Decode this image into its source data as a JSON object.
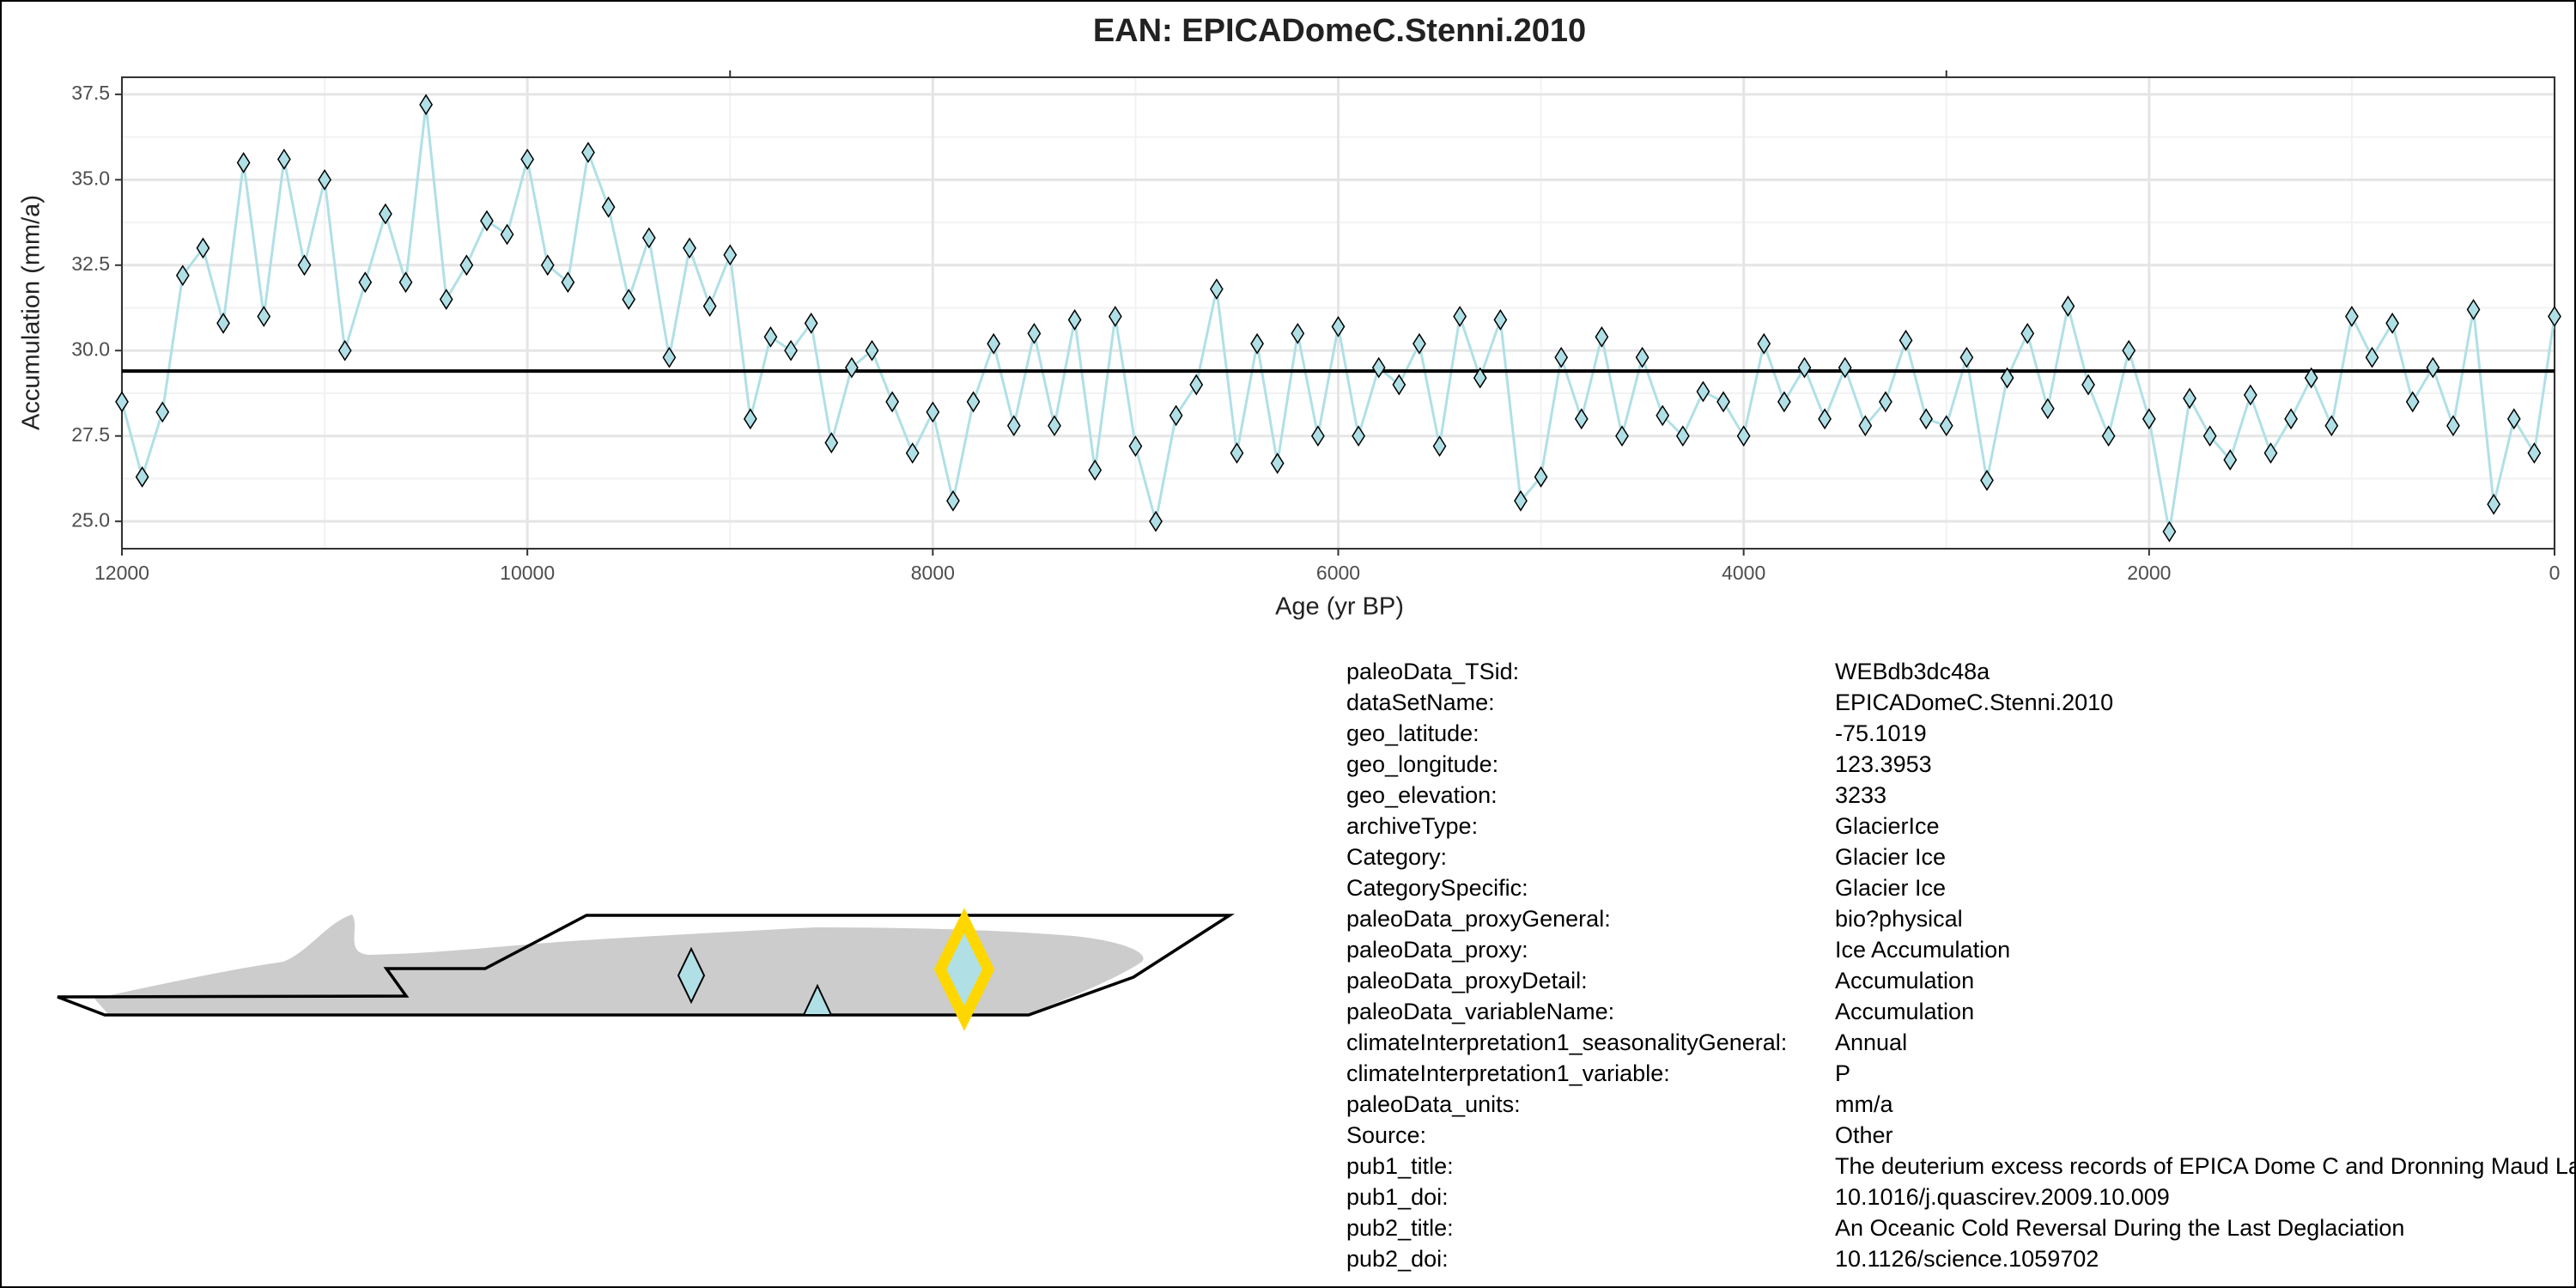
{
  "chart_data": {
    "type": "line",
    "title": "EAN: EPICADomeC.Stenni.2010",
    "x_label": "Age (yr BP)",
    "y_label": "Accumulation (mm/a)",
    "x": [
      12000,
      11900,
      11800,
      11700,
      11600,
      11500,
      11400,
      11300,
      11200,
      11100,
      11000,
      10900,
      10800,
      10700,
      10600,
      10500,
      10400,
      10300,
      10200,
      10100,
      10000,
      9900,
      9800,
      9700,
      9600,
      9500,
      9400,
      9300,
      9200,
      9100,
      9000,
      8900,
      8800,
      8700,
      8600,
      8500,
      8400,
      8300,
      8200,
      8100,
      8000,
      7900,
      7800,
      7700,
      7600,
      7500,
      7400,
      7300,
      7200,
      7100,
      7000,
      6900,
      6800,
      6700,
      6600,
      6500,
      6400,
      6300,
      6200,
      6100,
      6000,
      5900,
      5800,
      5700,
      5600,
      5500,
      5400,
      5300,
      5200,
      5100,
      5000,
      4900,
      4800,
      4700,
      4600,
      4500,
      4400,
      4300,
      4200,
      4100,
      4000,
      3900,
      3800,
      3700,
      3600,
      3500,
      3400,
      3300,
      3200,
      3100,
      3000,
      2900,
      2800,
      2700,
      2600,
      2500,
      2400,
      2300,
      2200,
      2100,
      2000,
      1900,
      1800,
      1700,
      1600,
      1500,
      1400,
      1300,
      1200,
      1100,
      1000,
      900,
      800,
      700,
      600,
      500,
      400,
      300,
      200,
      100,
      0
    ],
    "series": [
      {
        "color": "#b0e0e6",
        "marker_color": "#b0e0e6",
        "values": [
          28.5,
          26.3,
          28.2,
          32.2,
          33.0,
          30.8,
          35.5,
          31.0,
          35.6,
          32.5,
          35.0,
          30.0,
          32.0,
          34.0,
          32.0,
          37.2,
          31.5,
          32.5,
          33.8,
          33.4,
          35.6,
          32.5,
          32.0,
          35.8,
          34.2,
          31.5,
          33.3,
          29.8,
          33.0,
          31.3,
          32.8,
          28.0,
          30.4,
          30.0,
          30.8,
          27.3,
          29.5,
          30.0,
          28.5,
          27.0,
          28.2,
          25.6,
          28.5,
          30.2,
          27.8,
          30.5,
          27.8,
          30.9,
          26.5,
          31.0,
          27.2,
          25.0,
          28.1,
          29.0,
          31.8,
          27.0,
          30.2,
          26.7,
          30.5,
          27.5,
          30.7,
          27.5,
          29.5,
          29.0,
          30.2,
          27.2,
          31.0,
          29.2,
          30.9,
          25.6,
          26.3,
          29.8,
          28.0,
          30.4,
          27.5,
          29.8,
          28.1,
          27.5,
          28.8,
          28.5,
          27.5,
          30.2,
          28.5,
          29.5,
          28.0,
          29.5,
          27.8,
          28.5,
          30.3,
          28.0,
          27.8,
          29.8,
          26.2,
          29.2,
          30.5,
          28.3,
          31.3,
          29.0,
          27.5,
          30.0,
          28.0,
          24.7,
          28.6,
          27.5,
          26.8,
          28.7,
          27.0,
          28.0,
          29.2,
          27.8,
          31.0,
          29.8,
          30.8,
          28.5,
          29.5,
          27.8,
          31.2,
          25.5,
          28.0,
          27.0,
          31.0
        ]
      }
    ],
    "reference_line": 29.4,
    "xlim": [
      12000,
      0
    ],
    "xticks": [
      12000,
      10000,
      8000,
      6000,
      4000,
      2000,
      0
    ],
    "ylim": [
      24.2,
      38.0
    ],
    "yticks": [
      {
        "value": 25,
        "label": "25.0"
      },
      27.5,
      {
        "value": 30,
        "label": "30.0"
      },
      32.5,
      {
        "value": 35,
        "label": "35.0"
      },
      37.5
    ],
    "grid": true
  },
  "metadata": {
    "rows": [
      [
        "paleoData_TSid:",
        "WEBdb3dc48a"
      ],
      [
        "dataSetName:",
        "EPICADomeC.Stenni.2010"
      ],
      [
        "geo_latitude:",
        "-75.1019"
      ],
      [
        "geo_longitude:",
        "123.3953"
      ],
      [
        "geo_elevation:",
        "3233"
      ],
      [
        "archiveType:",
        "GlacierIce"
      ],
      [
        "Category:",
        "Glacier Ice"
      ],
      [
        "CategorySpecific:",
        "Glacier Ice"
      ],
      [
        "paleoData_proxyGeneral:",
        "bio?physical"
      ],
      [
        "paleoData_proxy:",
        "Ice Accumulation"
      ],
      [
        "paleoData_proxyDetail:",
        "Accumulation"
      ],
      [
        "paleoData_variableName:",
        "Accumulation"
      ],
      [
        "climateInterpretation1_seasonalityGeneral:",
        "Annual"
      ],
      [
        "climateInterpretation1_variable:",
        "P"
      ],
      [
        "paleoData_units:",
        "mm/a"
      ],
      [
        "Source:",
        "Other"
      ],
      [
        "pub1_title:",
        "The deuterium excess records of EPICA Dome C and Dronning Maud Land"
      ],
      [
        "pub1_doi:",
        "10.1016/j.quascirev.2009.10.009"
      ],
      [
        "pub2_title:",
        "An Oceanic Cold Reversal During the Last Deglaciation"
      ],
      [
        "pub2_doi:",
        "10.1126/science.1059702"
      ]
    ]
  }
}
